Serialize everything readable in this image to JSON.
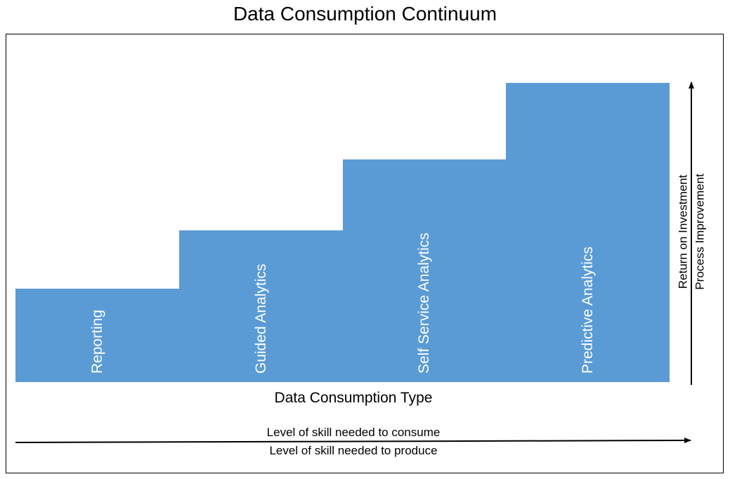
{
  "title": "Data Consumption Continuum",
  "steps": [
    {
      "label": "Reporting",
      "level": 1
    },
    {
      "label": "Guided Analytics",
      "level": 2
    },
    {
      "label": "Self Service Analytics",
      "level": 3
    },
    {
      "label": "Predictive Analytics",
      "level": 4
    }
  ],
  "x_axis": {
    "label": "Data Consumption Type",
    "arrow_label_top": "Level of skill needed to consume",
    "arrow_label_bottom": "Level of skill needed to produce"
  },
  "y_axis": {
    "label_line1": "Return on Investment",
    "label_line2": "Process Improvement"
  },
  "colors": {
    "step_fill": "#5b9bd5",
    "step_text": "#ffffff"
  }
}
